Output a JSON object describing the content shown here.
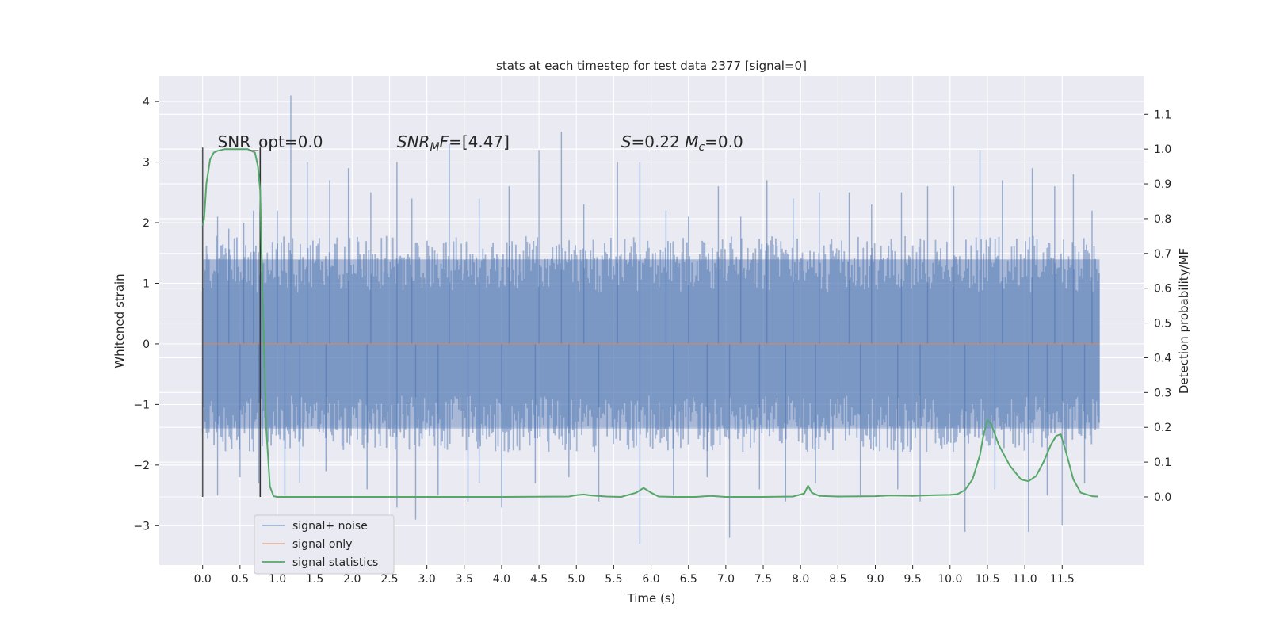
{
  "chart_data": {
    "type": "line",
    "title": "stats at each timestep for test data 2377 [signal=0]",
    "xlabel": "Time (s)",
    "ylabel": "Whitened strain",
    "y2label": "Detection probability/MF",
    "xlim": [
      -0.58,
      12.6
    ],
    "ylim": [
      -3.65,
      4.42
    ],
    "y2lim": [
      -0.196,
      1.21
    ],
    "x_ticks": [
      0.0,
      0.5,
      1.0,
      1.5,
      2.0,
      2.5,
      3.0,
      3.5,
      4.0,
      4.5,
      5.0,
      5.5,
      6.0,
      6.5,
      7.0,
      7.5,
      8.0,
      8.5,
      9.0,
      9.5,
      10.0,
      10.5,
      11.0,
      11.5
    ],
    "x_tick_labels": [
      "0.0",
      "0.5",
      "1.0",
      "1.5",
      "2.0",
      "2.5",
      "3.0",
      "3.5",
      "4.0",
      "4.5",
      "5.0",
      "5.5",
      "6.0",
      "6.5",
      "7.0",
      "7.5",
      "8.0",
      "8.5",
      "9.0",
      "9.5",
      "10.0",
      "10.5",
      "11.0",
      "11.5"
    ],
    "y_ticks": [
      -3,
      -2,
      -1,
      0,
      1,
      2,
      3,
      4
    ],
    "y_tick_labels": [
      "−3",
      "−2",
      "−1",
      "0",
      "1",
      "2",
      "3",
      "4"
    ],
    "y2_ticks": [
      0.0,
      0.1,
      0.2,
      0.3,
      0.4,
      0.5,
      0.6,
      0.7,
      0.8,
      0.9,
      1.0,
      1.1
    ],
    "y2_tick_labels": [
      "0.0",
      "0.1",
      "0.2",
      "0.3",
      "0.4",
      "0.5",
      "0.6",
      "0.7",
      "0.8",
      "0.9",
      "1.0",
      "1.1"
    ],
    "grid": true,
    "legend_position": "bottom-left",
    "annotations": [
      {
        "text": "SNR_opt=0.0",
        "x": 0.2,
        "y2": 1.0
      },
      {
        "text": "SNR_MF=[4.47]",
        "x": 2.6,
        "y2": 1.0
      },
      {
        "text": "S=0.22   M_c=0.0",
        "x": 5.6,
        "y2": 1.0
      }
    ],
    "vlines": [
      {
        "x": 0.0,
        "y2": [
          0.0,
          1.0
        ],
        "color": "#555555"
      },
      {
        "x": 0.77,
        "y2": [
          0.0,
          1.0
        ],
        "color": "#333333"
      }
    ],
    "series": [
      {
        "name": "signal+ noise",
        "color": "#4c72b0",
        "axis": "left",
        "x_range": [
          0.0,
          12.0
        ],
        "band": {
          "lower": -1.55,
          "upper": 1.55
        },
        "spikes": [
          [
            0.2,
            2.1
          ],
          [
            0.35,
            1.9
          ],
          [
            0.55,
            2.0
          ],
          [
            0.68,
            2.2
          ],
          [
            1.0,
            2.2
          ],
          [
            1.18,
            4.1
          ],
          [
            1.4,
            3.0
          ],
          [
            1.7,
            2.7
          ],
          [
            1.95,
            2.9
          ],
          [
            2.25,
            2.5
          ],
          [
            2.6,
            3.0
          ],
          [
            2.8,
            2.4
          ],
          [
            3.3,
            3.3
          ],
          [
            3.7,
            2.4
          ],
          [
            4.1,
            2.6
          ],
          [
            4.5,
            3.2
          ],
          [
            4.8,
            3.5
          ],
          [
            5.1,
            2.3
          ],
          [
            5.55,
            3.0
          ],
          [
            5.85,
            3.0
          ],
          [
            6.2,
            2.2
          ],
          [
            6.5,
            2.1
          ],
          [
            6.9,
            2.6
          ],
          [
            7.2,
            2.1
          ],
          [
            7.55,
            2.7
          ],
          [
            7.9,
            2.4
          ],
          [
            8.25,
            2.5
          ],
          [
            8.65,
            2.5
          ],
          [
            8.95,
            2.3
          ],
          [
            9.35,
            2.5
          ],
          [
            9.7,
            2.6
          ],
          [
            10.05,
            2.6
          ],
          [
            10.4,
            3.2
          ],
          [
            10.7,
            2.7
          ],
          [
            11.1,
            2.9
          ],
          [
            11.4,
            2.6
          ],
          [
            11.65,
            2.8
          ],
          [
            11.9,
            2.2
          ],
          [
            0.2,
            -2.5
          ],
          [
            0.5,
            -2.2
          ],
          [
            0.75,
            -2.3
          ],
          [
            1.1,
            -2.5
          ],
          [
            1.3,
            -2.3
          ],
          [
            1.65,
            -2.1
          ],
          [
            2.2,
            -2.4
          ],
          [
            2.6,
            -2.7
          ],
          [
            2.85,
            -2.9
          ],
          [
            3.15,
            -2.5
          ],
          [
            3.55,
            -2.6
          ],
          [
            3.7,
            -2.3
          ],
          [
            4.0,
            -2.7
          ],
          [
            4.45,
            -2.3
          ],
          [
            4.9,
            -2.2
          ],
          [
            5.3,
            -2.6
          ],
          [
            5.85,
            -3.3
          ],
          [
            6.3,
            -2.5
          ],
          [
            6.75,
            -2.2
          ],
          [
            7.05,
            -3.2
          ],
          [
            7.45,
            -2.4
          ],
          [
            7.8,
            -2.6
          ],
          [
            8.2,
            -2.3
          ],
          [
            8.8,
            -2.5
          ],
          [
            9.3,
            -2.4
          ],
          [
            9.6,
            -2.6
          ],
          [
            10.2,
            -3.1
          ],
          [
            10.6,
            -2.4
          ],
          [
            11.05,
            -3.1
          ],
          [
            11.3,
            -2.5
          ],
          [
            11.5,
            -3.0
          ],
          [
            11.8,
            -2.3
          ]
        ]
      },
      {
        "name": "signal only",
        "color": "#dd8452",
        "axis": "left",
        "x": [
          0.0,
          12.0
        ],
        "y": [
          0.0,
          0.0
        ]
      },
      {
        "name": "signal statistics",
        "color": "#55a868",
        "axis": "right",
        "x": [
          0.0,
          0.02,
          0.05,
          0.1,
          0.15,
          0.2,
          0.3,
          0.4,
          0.5,
          0.6,
          0.65,
          0.7,
          0.74,
          0.77,
          0.8,
          0.85,
          0.9,
          0.95,
          1.0,
          1.5,
          2.0,
          3.0,
          4.0,
          4.9,
          5.0,
          5.1,
          5.2,
          5.4,
          5.6,
          5.8,
          5.9,
          6.0,
          6.1,
          6.3,
          6.6,
          6.8,
          7.0,
          7.5,
          7.9,
          8.05,
          8.1,
          8.15,
          8.25,
          8.5,
          9.0,
          9.2,
          9.5,
          9.8,
          10.0,
          10.1,
          10.2,
          10.3,
          10.4,
          10.45,
          10.5,
          10.55,
          10.65,
          10.8,
          10.95,
          11.05,
          11.15,
          11.25,
          11.35,
          11.42,
          11.48,
          11.55,
          11.65,
          11.75,
          11.9,
          11.98
        ],
        "y": [
          0.78,
          0.8,
          0.9,
          0.97,
          0.99,
          0.995,
          1.0,
          1.0,
          1.0,
          1.0,
          0.995,
          0.99,
          0.95,
          0.88,
          0.6,
          0.2,
          0.03,
          0.002,
          0.0,
          0.0,
          0.0,
          0.0,
          0.0,
          0.001,
          0.005,
          0.007,
          0.004,
          0.001,
          0.0,
          0.012,
          0.026,
          0.012,
          0.001,
          0.0,
          0.0,
          0.003,
          0.0,
          0.0,
          0.001,
          0.01,
          0.032,
          0.012,
          0.003,
          0.001,
          0.002,
          0.004,
          0.003,
          0.005,
          0.006,
          0.008,
          0.02,
          0.05,
          0.12,
          0.18,
          0.22,
          0.21,
          0.15,
          0.09,
          0.05,
          0.045,
          0.06,
          0.1,
          0.15,
          0.175,
          0.18,
          0.13,
          0.05,
          0.012,
          0.002,
          0.001
        ]
      }
    ]
  }
}
